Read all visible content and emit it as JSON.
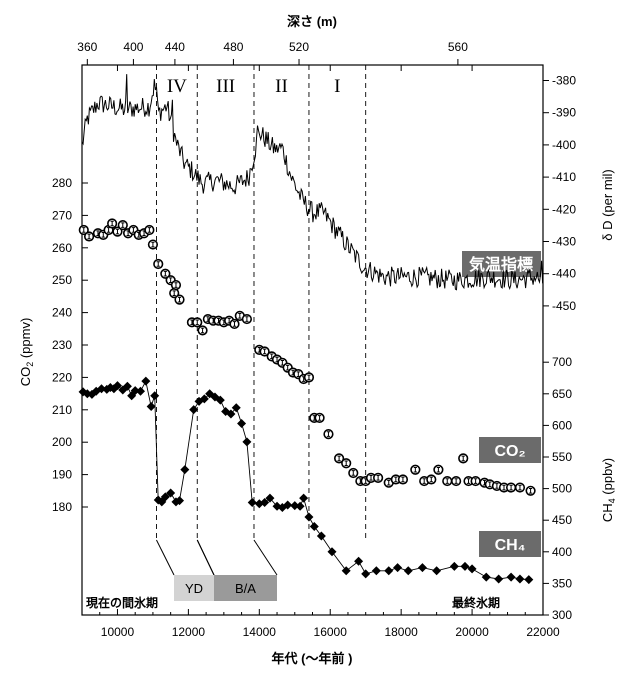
{
  "chart_data": {
    "type": "line",
    "top_axis": {
      "title": "深さ (m)",
      "ticks": [
        "360",
        "400",
        "440",
        "480",
        "520",
        "560"
      ],
      "tick_years": [
        9150,
        10450,
        11620,
        13270,
        15120,
        19600
      ]
    },
    "x_axis": {
      "title": "年代 (〜年前 )",
      "range": [
        9000,
        22000
      ],
      "ticks": [
        "10000",
        "12000",
        "14000",
        "16000",
        "18000",
        "20000",
        "22000"
      ]
    },
    "left_axis": {
      "title": "CO2 (ppmv)",
      "range": [
        170,
        290
      ],
      "ticks": [
        "180",
        "190",
        "200",
        "210",
        "220",
        "230",
        "240",
        "250",
        "260",
        "270",
        "280"
      ]
    },
    "right_axis_top": {
      "title": "δ D (per mil)",
      "range": [
        -452,
        -375
      ],
      "ticks": [
        "-380",
        "-390",
        "-400",
        "-410",
        "-420",
        "-430",
        "-440",
        "-450"
      ]
    },
    "right_axis_bottom": {
      "title": "CH4 (ppbv)",
      "range": [
        300,
        700
      ],
      "ticks": [
        "300",
        "350",
        "400",
        "450",
        "500",
        "550",
        "600",
        "650",
        "700"
      ]
    },
    "stages": {
      "boundaries": [
        11100,
        12250,
        13850,
        15400,
        17000
      ],
      "labels": [
        "IV",
        "III",
        "II",
        "I"
      ]
    },
    "periods": {
      "yd": "YD",
      "ba": "B/A",
      "left": "現在の間氷期",
      "right": "最終氷期"
    },
    "series_labels": {
      "temp": "気温指標",
      "co2": "CO₂",
      "ch4": "CH₄"
    },
    "co2": {
      "x": [
        9050,
        9200,
        9450,
        9600,
        9750,
        9850,
        10000,
        10150,
        10300,
        10450,
        10600,
        10750,
        10900,
        11000,
        11150,
        11350,
        11500,
        11600,
        11650,
        11750,
        12100,
        12250,
        12400,
        12550,
        12700,
        12850,
        13000,
        13150,
        13300,
        13450,
        13650,
        14000,
        14150,
        14350,
        14500,
        14650,
        14800,
        14950,
        15100,
        15250,
        15400,
        15550,
        15700,
        15950,
        16250,
        16450,
        16650,
        16850,
        17000,
        17150,
        17350,
        17650,
        17850,
        18050,
        18400,
        18650,
        18850,
        19050,
        19300,
        19550,
        19750,
        19900,
        20100,
        20350,
        20500,
        20700,
        20900,
        21100,
        21350,
        21650
      ],
      "y": [
        265.5,
        263.5,
        264.5,
        264,
        265.5,
        267.5,
        265,
        267,
        264.5,
        265.5,
        264,
        264.5,
        265.5,
        261,
        255,
        252,
        250,
        246,
        248.5,
        244,
        237,
        237,
        234.5,
        238,
        237.5,
        237.5,
        237,
        237.5,
        236.5,
        239,
        238,
        228.5,
        228,
        226.5,
        225.5,
        224.5,
        223,
        221.5,
        221,
        219.5,
        220,
        207.5,
        207.5,
        202.5,
        195,
        193.5,
        190.5,
        188,
        188,
        189,
        189,
        187.5,
        188.5,
        188.5,
        191.5,
        188,
        188.5,
        191.5,
        188,
        188,
        195,
        188,
        188,
        187.5,
        187,
        186.5,
        186,
        186,
        186,
        185
      ]
    },
    "ch4": {
      "x": [
        9030,
        9150,
        9280,
        9400,
        9550,
        9700,
        9800,
        9900,
        10000,
        10150,
        10280,
        10400,
        10500,
        10650,
        10800,
        10950,
        11050,
        11150,
        11250,
        11350,
        11500,
        11650,
        11750,
        11900,
        12150,
        12300,
        12450,
        12600,
        12750,
        12900,
        13050,
        13200,
        13350,
        13500,
        13650,
        13800,
        14000,
        14150,
        14300,
        14500,
        14650,
        14800,
        15000,
        15150,
        15250,
        15400,
        15550,
        15750,
        16050,
        16450,
        16800,
        17000,
        17300,
        17650,
        17900,
        18200,
        18600,
        19000,
        19500,
        19800,
        20000,
        20400,
        20750,
        21100,
        21350,
        21600
      ],
      "y": [
        653,
        650,
        649,
        654,
        658,
        657,
        660,
        658,
        663,
        656,
        662,
        647,
        655,
        654,
        670,
        630,
        647,
        482,
        479,
        487,
        493,
        479,
        481,
        530,
        625,
        638,
        642,
        650,
        645,
        640,
        622,
        618,
        628,
        603,
        574,
        478,
        476,
        478,
        485,
        472,
        470,
        474,
        473,
        472,
        485,
        455,
        440,
        425,
        400,
        370,
        385,
        365,
        370,
        370,
        375,
        370,
        375,
        370,
        377,
        377,
        373,
        360,
        357,
        360,
        357,
        356
      ]
    },
    "temp": {
      "x_start": 9000,
      "x_end": 22000,
      "x_step": 30,
      "breakpoints": [
        [
          9000,
          -400
        ],
        [
          9150,
          -392
        ],
        [
          9450,
          -387
        ],
        [
          10200,
          -389
        ],
        [
          10900,
          -388
        ],
        [
          11050,
          -381
        ],
        [
          11150,
          -390
        ],
        [
          11400,
          -388
        ],
        [
          11650,
          -399
        ],
        [
          11900,
          -406
        ],
        [
          12100,
          -408
        ],
        [
          12400,
          -412
        ],
        [
          12800,
          -411
        ],
        [
          13300,
          -413
        ],
        [
          13700,
          -410
        ],
        [
          13850,
          -403
        ],
        [
          14000,
          -396
        ],
        [
          14400,
          -401
        ],
        [
          14650,
          -401
        ],
        [
          14900,
          -410
        ],
        [
          15200,
          -417
        ],
        [
          15500,
          -421
        ],
        [
          15800,
          -421
        ],
        [
          16200,
          -427
        ],
        [
          16600,
          -433
        ],
        [
          16950,
          -438
        ],
        [
          17500,
          -441
        ],
        [
          18500,
          -441
        ],
        [
          19500,
          -442
        ],
        [
          20500,
          -441
        ],
        [
          21200,
          -442
        ],
        [
          21800,
          -441
        ],
        [
          22000,
          -443
        ]
      ],
      "spikes": [
        [
          10250,
          -378
        ],
        [
          11100,
          -382
        ],
        [
          11550,
          -386
        ],
        [
          13960,
          -394
        ],
        [
          14500,
          -400
        ],
        [
          21950,
          -436
        ]
      ],
      "noise_amplitude": 3.2
    }
  }
}
